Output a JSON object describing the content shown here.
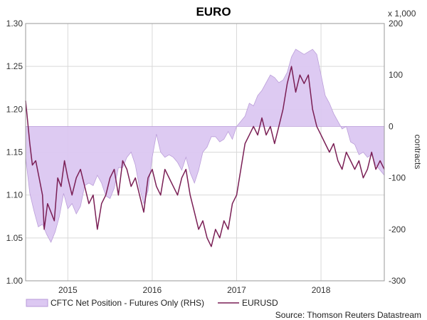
{
  "chart_data": {
    "type": "line",
    "title": "EURO",
    "source": "Source: Thomson Reuters Datastream",
    "left_axis": {
      "ylim": [
        1.0,
        1.3
      ],
      "ticks": [
        "1.00",
        "1.05",
        "1.10",
        "1.15",
        "1.20",
        "1.25",
        "1.30"
      ]
    },
    "right_axis": {
      "ylim": [
        -300,
        200
      ],
      "ticks": [
        "200",
        "100",
        "0",
        "-100",
        "-200",
        "-300"
      ],
      "multiplier": "x 1,000",
      "label": "contracts"
    },
    "x_axis": {
      "range": [
        2014.5,
        2018.75
      ],
      "ticks": [
        {
          "x": 2015,
          "label": "2015"
        },
        {
          "x": 2016,
          "label": "2016"
        },
        {
          "x": 2017,
          "label": "2017"
        },
        {
          "x": 2018,
          "label": "2018"
        }
      ]
    },
    "grid": true,
    "legend_position": "bottom",
    "colors": {
      "eurusd": "#7a1f55",
      "cftc_fill": "#dcc8f2",
      "cftc_stroke": "#b89ad8",
      "grid": "#d9d9d9"
    },
    "series": [
      {
        "name": "CFTC Net Position - Futures Only (RHS)",
        "type": "area",
        "axis": "right",
        "points": [
          [
            2014.5,
            -60
          ],
          [
            2014.55,
            -130
          ],
          [
            2014.6,
            -165
          ],
          [
            2014.65,
            -195
          ],
          [
            2014.7,
            -190
          ],
          [
            2014.75,
            -210
          ],
          [
            2014.8,
            -225
          ],
          [
            2014.85,
            -205
          ],
          [
            2014.9,
            -175
          ],
          [
            2014.95,
            -130
          ],
          [
            2015.0,
            -160
          ],
          [
            2015.05,
            -150
          ],
          [
            2015.1,
            -170
          ],
          [
            2015.15,
            -155
          ],
          [
            2015.2,
            -115
          ],
          [
            2015.25,
            -110
          ],
          [
            2015.3,
            -115
          ],
          [
            2015.35,
            -95
          ],
          [
            2015.4,
            -110
          ],
          [
            2015.45,
            -135
          ],
          [
            2015.5,
            -140
          ],
          [
            2015.55,
            -120
          ],
          [
            2015.6,
            -80
          ],
          [
            2015.65,
            -80
          ],
          [
            2015.7,
            -60
          ],
          [
            2015.75,
            -50
          ],
          [
            2015.8,
            -75
          ],
          [
            2015.85,
            -120
          ],
          [
            2015.9,
            -150
          ],
          [
            2015.95,
            -125
          ],
          [
            2016.0,
            -60
          ],
          [
            2016.05,
            -15
          ],
          [
            2016.1,
            -50
          ],
          [
            2016.15,
            -60
          ],
          [
            2016.2,
            -55
          ],
          [
            2016.25,
            -60
          ],
          [
            2016.3,
            -70
          ],
          [
            2016.35,
            -85
          ],
          [
            2016.4,
            -60
          ],
          [
            2016.45,
            -90
          ],
          [
            2016.5,
            -110
          ],
          [
            2016.55,
            -85
          ],
          [
            2016.6,
            -50
          ],
          [
            2016.65,
            -40
          ],
          [
            2016.7,
            -20
          ],
          [
            2016.75,
            -20
          ],
          [
            2016.8,
            -30
          ],
          [
            2016.85,
            -25
          ],
          [
            2016.9,
            -10
          ],
          [
            2016.95,
            -25
          ],
          [
            2017.0,
            0
          ],
          [
            2017.05,
            10
          ],
          [
            2017.1,
            20
          ],
          [
            2017.15,
            45
          ],
          [
            2017.2,
            40
          ],
          [
            2017.25,
            60
          ],
          [
            2017.3,
            70
          ],
          [
            2017.35,
            85
          ],
          [
            2017.4,
            100
          ],
          [
            2017.45,
            95
          ],
          [
            2017.5,
            85
          ],
          [
            2017.55,
            90
          ],
          [
            2017.6,
            105
          ],
          [
            2017.65,
            135
          ],
          [
            2017.7,
            150
          ],
          [
            2017.75,
            145
          ],
          [
            2017.8,
            140
          ],
          [
            2017.85,
            145
          ],
          [
            2017.9,
            150
          ],
          [
            2017.95,
            140
          ],
          [
            2018.0,
            100
          ],
          [
            2018.05,
            60
          ],
          [
            2018.1,
            45
          ],
          [
            2018.15,
            25
          ],
          [
            2018.2,
            10
          ],
          [
            2018.25,
            -5
          ],
          [
            2018.3,
            0
          ],
          [
            2018.35,
            -30
          ],
          [
            2018.4,
            -35
          ],
          [
            2018.45,
            -55
          ],
          [
            2018.5,
            -50
          ],
          [
            2018.55,
            -60
          ],
          [
            2018.6,
            -55
          ],
          [
            2018.65,
            -75
          ],
          [
            2018.7,
            -85
          ],
          [
            2018.75,
            -95
          ]
        ]
      },
      {
        "name": "EURUSD",
        "type": "line",
        "axis": "left",
        "points": [
          [
            2014.5,
            1.21
          ],
          [
            2014.55,
            1.16
          ],
          [
            2014.58,
            1.135
          ],
          [
            2014.62,
            1.14
          ],
          [
            2014.66,
            1.12
          ],
          [
            2014.7,
            1.1
          ],
          [
            2014.72,
            1.06
          ],
          [
            2014.76,
            1.09
          ],
          [
            2014.8,
            1.08
          ],
          [
            2014.84,
            1.07
          ],
          [
            2014.88,
            1.12
          ],
          [
            2014.92,
            1.11
          ],
          [
            2014.96,
            1.14
          ],
          [
            2015.0,
            1.12
          ],
          [
            2015.05,
            1.1
          ],
          [
            2015.1,
            1.12
          ],
          [
            2015.15,
            1.13
          ],
          [
            2015.2,
            1.11
          ],
          [
            2015.25,
            1.09
          ],
          [
            2015.3,
            1.1
          ],
          [
            2015.35,
            1.06
          ],
          [
            2015.4,
            1.09
          ],
          [
            2015.45,
            1.1
          ],
          [
            2015.5,
            1.12
          ],
          [
            2015.55,
            1.13
          ],
          [
            2015.6,
            1.1
          ],
          [
            2015.65,
            1.14
          ],
          [
            2015.7,
            1.13
          ],
          [
            2015.75,
            1.11
          ],
          [
            2015.8,
            1.12
          ],
          [
            2015.85,
            1.1
          ],
          [
            2015.9,
            1.08
          ],
          [
            2015.95,
            1.12
          ],
          [
            2016.0,
            1.13
          ],
          [
            2016.05,
            1.11
          ],
          [
            2016.1,
            1.1
          ],
          [
            2016.15,
            1.13
          ],
          [
            2016.2,
            1.12
          ],
          [
            2016.25,
            1.11
          ],
          [
            2016.3,
            1.1
          ],
          [
            2016.35,
            1.12
          ],
          [
            2016.4,
            1.13
          ],
          [
            2016.45,
            1.1
          ],
          [
            2016.5,
            1.08
          ],
          [
            2016.55,
            1.06
          ],
          [
            2016.6,
            1.07
          ],
          [
            2016.65,
            1.05
          ],
          [
            2016.7,
            1.04
          ],
          [
            2016.75,
            1.06
          ],
          [
            2016.8,
            1.05
          ],
          [
            2016.85,
            1.07
          ],
          [
            2016.9,
            1.06
          ],
          [
            2016.95,
            1.09
          ],
          [
            2017.0,
            1.1
          ],
          [
            2017.05,
            1.13
          ],
          [
            2017.1,
            1.16
          ],
          [
            2017.15,
            1.17
          ],
          [
            2017.2,
            1.18
          ],
          [
            2017.25,
            1.17
          ],
          [
            2017.3,
            1.19
          ],
          [
            2017.35,
            1.17
          ],
          [
            2017.4,
            1.18
          ],
          [
            2017.45,
            1.16
          ],
          [
            2017.5,
            1.18
          ],
          [
            2017.55,
            1.2
          ],
          [
            2017.6,
            1.23
          ],
          [
            2017.65,
            1.25
          ],
          [
            2017.7,
            1.22
          ],
          [
            2017.75,
            1.24
          ],
          [
            2017.8,
            1.23
          ],
          [
            2017.85,
            1.24
          ],
          [
            2017.9,
            1.2
          ],
          [
            2017.95,
            1.18
          ],
          [
            2018.0,
            1.17
          ],
          [
            2018.05,
            1.16
          ],
          [
            2018.1,
            1.15
          ],
          [
            2018.15,
            1.16
          ],
          [
            2018.2,
            1.14
          ],
          [
            2018.25,
            1.13
          ],
          [
            2018.3,
            1.15
          ],
          [
            2018.35,
            1.14
          ],
          [
            2018.4,
            1.13
          ],
          [
            2018.45,
            1.14
          ],
          [
            2018.5,
            1.12
          ],
          [
            2018.55,
            1.13
          ],
          [
            2018.6,
            1.15
          ],
          [
            2018.65,
            1.13
          ],
          [
            2018.7,
            1.14
          ],
          [
            2018.75,
            1.13
          ]
        ]
      }
    ]
  }
}
